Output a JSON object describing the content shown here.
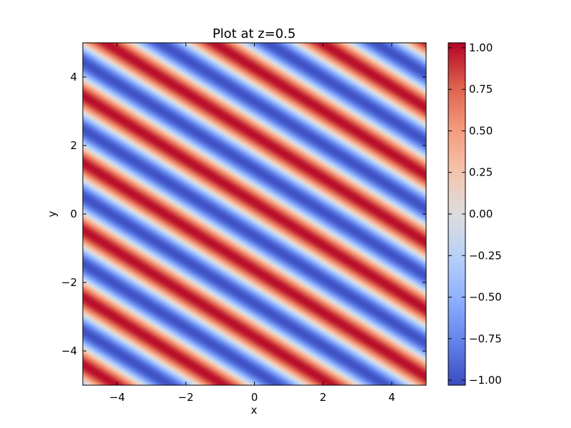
{
  "chart_data": {
    "type": "heatmap",
    "title": "Plot at z=0.5",
    "xlabel": "x",
    "ylabel": "y",
    "xlim": [
      -5,
      5
    ],
    "ylim": [
      -5,
      5
    ],
    "x_ticks": [
      -4,
      -2,
      0,
      2,
      4
    ],
    "x_tick_labels": [
      "−4",
      "−2",
      "0",
      "2",
      "4"
    ],
    "y_ticks": [
      -4,
      -2,
      0,
      2,
      4
    ],
    "y_tick_labels": [
      "−4",
      "−2",
      "0",
      "2",
      "4"
    ],
    "colormap": "coolwarm",
    "field": {
      "function": "sin",
      "kx": 2.0,
      "ky": 3.2,
      "phase": 0.5
    },
    "colorbar": {
      "range": [
        -1.03,
        1.03
      ],
      "ticks": [
        -1.0,
        -0.75,
        -0.5,
        -0.25,
        0.0,
        0.25,
        0.5,
        0.75,
        1.0
      ],
      "tick_labels": [
        "−1.00",
        "−0.75",
        "−0.50",
        "−0.25",
        "0.00",
        "0.25",
        "0.50",
        "0.75",
        "1.00"
      ]
    },
    "grid": false,
    "legend": "none"
  }
}
